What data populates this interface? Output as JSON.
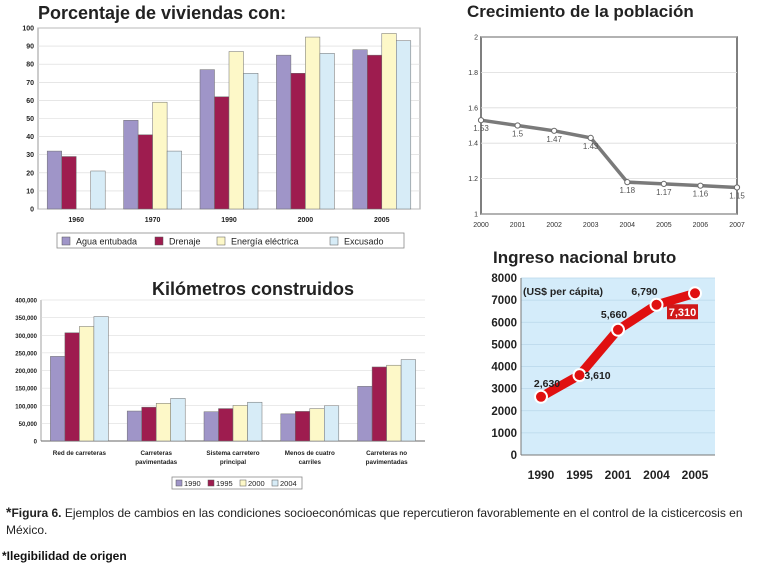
{
  "colors": {
    "agua": "#9f95c8",
    "drenaje": "#9e1c4f",
    "energia": "#fdf8c8",
    "excusado": "#d7ecf7",
    "red_line": "#e01010",
    "pop_line": "#7a7a7a",
    "ingreso_bg": "#d4ecfa"
  },
  "chart_data": [
    {
      "id": "viviendas",
      "type": "bar",
      "title": "Porcentaje de viviendas con:",
      "categories": [
        "1960",
        "1970",
        "1990",
        "2000",
        "2005"
      ],
      "yticks": [
        "0",
        "10",
        "20",
        "30",
        "40",
        "50",
        "60",
        "70",
        "80",
        "90",
        "100"
      ],
      "ylim": [
        0,
        100
      ],
      "series": [
        {
          "name": "Agua entubada",
          "values": [
            32,
            49,
            77,
            85,
            88
          ]
        },
        {
          "name": "Drenaje",
          "values": [
            29,
            41,
            62,
            75,
            85
          ]
        },
        {
          "name": "Energía eléctrica",
          "values": [
            0,
            59,
            87,
            95,
            97
          ]
        },
        {
          "name": "Excusado",
          "values": [
            21,
            32,
            75,
            86,
            93
          ]
        }
      ]
    },
    {
      "id": "poblacion",
      "type": "line",
      "title": "Crecimiento de la población",
      "x": [
        "2000",
        "2001",
        "2002",
        "2003",
        "2004",
        "2005",
        "2006",
        "2007"
      ],
      "values": [
        1.53,
        1.5,
        1.47,
        1.43,
        1.18,
        1.17,
        1.16,
        1.15
      ],
      "labels": [
        "1.53",
        "1.5",
        "1.47",
        "1.43",
        "1.18",
        "1.17",
        "1.16",
        "1.15"
      ],
      "yticks": [
        "1",
        "1.2",
        "1.4",
        "1.6",
        "1.8",
        "2"
      ],
      "ylim": [
        1,
        2
      ]
    },
    {
      "id": "kilometros",
      "type": "bar",
      "title": "Kilómetros construidos",
      "categories": [
        [
          "Red de carreteras"
        ],
        [
          "Carreteras",
          "pavimentadas"
        ],
        [
          "Sistema carretero",
          "principal"
        ],
        [
          "Menos de cuatro",
          "carriles"
        ],
        [
          "Carreteras no",
          "pavimentadas"
        ]
      ],
      "yticks": [
        "0",
        "50,000",
        "100,000",
        "150,000",
        "200,000",
        "250,000",
        "300,000",
        "350,000",
        "400,000"
      ],
      "ylim": [
        0,
        400000
      ],
      "series": [
        {
          "name": "1990",
          "values": [
            240000,
            85000,
            83000,
            77000,
            155000
          ]
        },
        {
          "name": "1995",
          "values": [
            307000,
            96000,
            92000,
            84000,
            210000
          ]
        },
        {
          "name": "2000",
          "values": [
            325000,
            107000,
            101000,
            92000,
            215000
          ]
        },
        {
          "name": "2004",
          "values": [
            353000,
            121000,
            110000,
            100000,
            231000
          ]
        }
      ]
    },
    {
      "id": "ingreso",
      "type": "line",
      "title": "Ingreso nacional bruto",
      "unit_label": "(US$ per cápita)",
      "x": [
        "1990",
        "1995",
        "2001",
        "2004",
        "2005"
      ],
      "values": [
        2630,
        3610,
        5660,
        6790,
        7310
      ],
      "labels": [
        "2,630",
        "3,610",
        "5,660",
        "6,790",
        "7,310"
      ],
      "yticks": [
        "0",
        "1000",
        "2000",
        "3000",
        "4000",
        "5000",
        "6000",
        "7000",
        "8000"
      ],
      "ylim": [
        0,
        8000
      ]
    }
  ],
  "caption": {
    "marker": "*",
    "label": "Figura 6.",
    "text": "Ejemplos de cambios en las condiciones socioeconómicas que repercutieron favorablemente en el control de la cisticercosis en México."
  },
  "footnote": "*Ilegibilidad de origen"
}
